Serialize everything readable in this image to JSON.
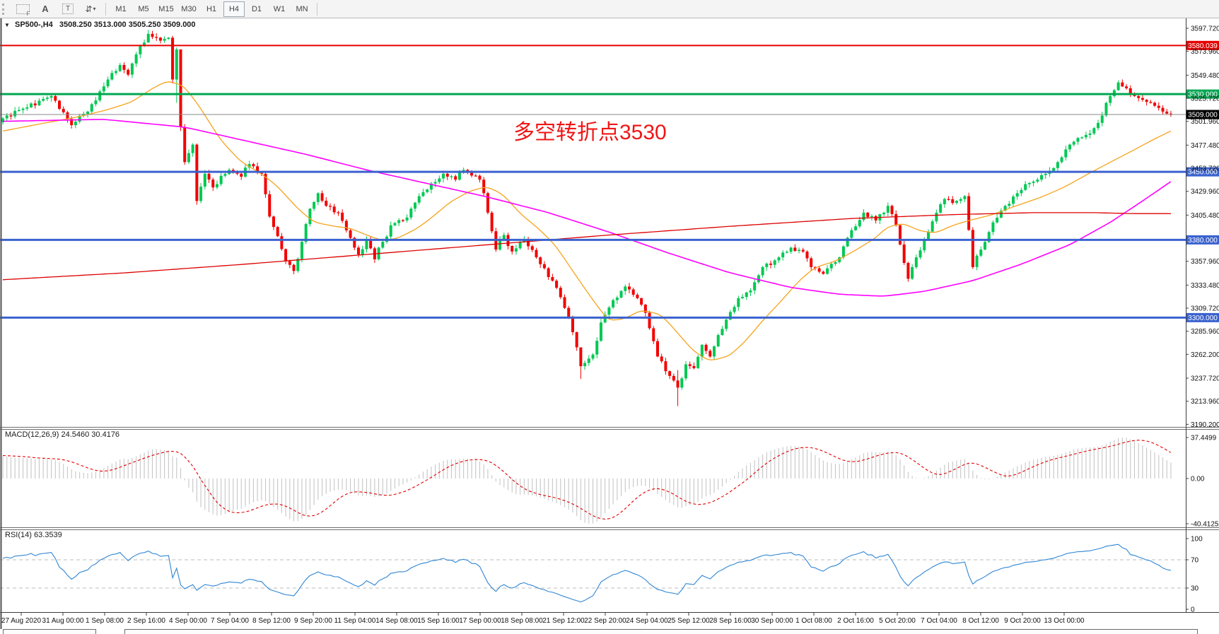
{
  "toolbar": {
    "tools": [
      {
        "name": "grid-f-tool",
        "label": "F"
      },
      {
        "name": "text-label-tool",
        "label": "A"
      },
      {
        "name": "text-tool",
        "label": "T"
      },
      {
        "name": "arrows-tool",
        "label": "⇵"
      }
    ],
    "timeframes": [
      "M1",
      "M5",
      "M15",
      "M30",
      "H1",
      "H4",
      "D1",
      "W1",
      "MN"
    ],
    "active_timeframe": "H4"
  },
  "chart": {
    "symbol": "SP500-,H4",
    "ohlc_line": "3508.250 3513.000 3505.250 3509.000",
    "annotation": "多空转折点3530",
    "annotation_color": "#f01616"
  },
  "indicators": {
    "macd": {
      "caption": "MACD(12,26,9) 24.5460 30.4176",
      "axis_labels": [
        "37.4499",
        "0.00",
        "-40.4125"
      ]
    },
    "rsi": {
      "caption": "RSI(14) 63.3539",
      "axis_labels": [
        "100",
        "70",
        "30",
        "0"
      ],
      "levels": [
        70,
        30
      ]
    }
  },
  "chart_data": {
    "type": "candlestick",
    "symbol": "SP500-",
    "timeframe": "H4",
    "bars": 290,
    "seed": 9,
    "current_price": 3509.0,
    "candle_up_color": "#00c853",
    "candle_down_color": "#f20000",
    "price_axis_ticks": [
      3597.72,
      3573.96,
      3549.48,
      3525.72,
      3501.96,
      3477.48,
      3453.72,
      3429.96,
      3405.48,
      3357.96,
      3333.48,
      3309.72,
      3285.96,
      3262.2,
      3237.72,
      3213.96,
      3190.2
    ],
    "horizontal_lines": [
      {
        "price": 3580.039,
        "label": "3580.039",
        "color": "#e80000",
        "width": 2
      },
      {
        "price": 3530.0,
        "label": "3530.000",
        "color": "#00a651",
        "width": 3
      },
      {
        "price": 3450.0,
        "label": "3450.000",
        "color": "#3a62cf",
        "width": 3
      },
      {
        "price": 3380.0,
        "label": "3380.000",
        "color": "#3a62cf",
        "width": 3
      },
      {
        "price": 3300.0,
        "label": "3300.000",
        "color": "#3a62cf",
        "width": 3
      }
    ],
    "current_price_line": {
      "price": 3509.0,
      "label": "3509.000",
      "line_color": "#8a8a8a",
      "badge_color": "#000000"
    },
    "time_axis_labels": [
      "27 Aug 2020",
      "31 Aug 00:00",
      "1 Sep 08:00",
      "2 Sep 16:00",
      "4 Sep 00:00",
      "7 Sep 04:00",
      "8 Sep 12:00",
      "9 Sep 20:00",
      "11 Sep 04:00",
      "14 Sep 08:00",
      "15 Sep 16:00",
      "17 Sep 00:00",
      "18 Sep 08:00",
      "21 Sep 12:00",
      "22 Sep 20:00",
      "24 Sep 04:00",
      "25 Sep 12:00",
      "28 Sep 16:00",
      "30 Sep 00:00",
      "1 Oct 08:00",
      "2 Oct 16:00",
      "5 Oct 20:00",
      "7 Oct 04:00",
      "8 Oct 12:00",
      "9 Oct 20:00",
      "13 Oct 00:00"
    ],
    "price_path_anchors": [
      [
        0,
        3505
      ],
      [
        5,
        3515
      ],
      [
        12,
        3528
      ],
      [
        17,
        3498
      ],
      [
        21,
        3512
      ],
      [
        26,
        3545
      ],
      [
        29,
        3560
      ],
      [
        31,
        3550
      ],
      [
        34,
        3580
      ],
      [
        36,
        3592
      ],
      [
        39,
        3585
      ],
      [
        41,
        3588
      ],
      [
        42,
        3545
      ],
      [
        43,
        3576
      ],
      [
        44,
        3496
      ],
      [
        45,
        3460
      ],
      [
        47,
        3478
      ],
      [
        48,
        3420
      ],
      [
        50,
        3448
      ],
      [
        52,
        3434
      ],
      [
        56,
        3452
      ],
      [
        59,
        3445
      ],
      [
        61,
        3458
      ],
      [
        64,
        3448
      ],
      [
        66,
        3404
      ],
      [
        70,
        3358
      ],
      [
        72,
        3348
      ],
      [
        74,
        3378
      ],
      [
        76,
        3412
      ],
      [
        78,
        3428
      ],
      [
        80,
        3415
      ],
      [
        83,
        3408
      ],
      [
        86,
        3382
      ],
      [
        88,
        3365
      ],
      [
        90,
        3380
      ],
      [
        92,
        3360
      ],
      [
        94,
        3378
      ],
      [
        96,
        3395
      ],
      [
        100,
        3403
      ],
      [
        103,
        3425
      ],
      [
        106,
        3438
      ],
      [
        109,
        3448
      ],
      [
        112,
        3442
      ],
      [
        114,
        3452
      ],
      [
        118,
        3442
      ],
      [
        120,
        3408
      ],
      [
        122,
        3370
      ],
      [
        124,
        3385
      ],
      [
        126,
        3368
      ],
      [
        129,
        3380
      ],
      [
        133,
        3355
      ],
      [
        136,
        3338
      ],
      [
        139,
        3310
      ],
      [
        141,
        3285
      ],
      [
        143,
        3250
      ],
      [
        146,
        3262
      ],
      [
        148,
        3295
      ],
      [
        151,
        3318
      ],
      [
        154,
        3332
      ],
      [
        157,
        3320
      ],
      [
        159,
        3305
      ],
      [
        162,
        3260
      ],
      [
        165,
        3240
      ],
      [
        167,
        3228
      ],
      [
        169,
        3252
      ],
      [
        171,
        3248
      ],
      [
        173,
        3272
      ],
      [
        175,
        3260
      ],
      [
        179,
        3298
      ],
      [
        182,
        3320
      ],
      [
        185,
        3328
      ],
      [
        188,
        3352
      ],
      [
        192,
        3362
      ],
      [
        195,
        3372
      ],
      [
        198,
        3368
      ],
      [
        200,
        3352
      ],
      [
        203,
        3345
      ],
      [
        207,
        3362
      ],
      [
        210,
        3390
      ],
      [
        213,
        3408
      ],
      [
        216,
        3400
      ],
      [
        219,
        3415
      ],
      [
        221,
        3395
      ],
      [
        224,
        3340
      ],
      [
        226,
        3362
      ],
      [
        228,
        3380
      ],
      [
        231,
        3408
      ],
      [
        233,
        3422
      ],
      [
        235,
        3418
      ],
      [
        238,
        3425
      ],
      [
        240,
        3352
      ],
      [
        242,
        3370
      ],
      [
        245,
        3398
      ],
      [
        248,
        3415
      ],
      [
        251,
        3428
      ],
      [
        255,
        3440
      ],
      [
        258,
        3448
      ],
      [
        261,
        3460
      ],
      [
        264,
        3478
      ],
      [
        268,
        3488
      ],
      [
        270,
        3495
      ],
      [
        272,
        3508
      ],
      [
        274,
        3528
      ],
      [
        276,
        3542
      ],
      [
        278,
        3536
      ],
      [
        280,
        3528
      ],
      [
        283,
        3522
      ],
      [
        285,
        3518
      ],
      [
        287,
        3512
      ],
      [
        289,
        3509
      ]
    ],
    "wick_overrides": {
      "36": [
        3596,
        3583
      ],
      "42": [
        3590,
        3541
      ],
      "43": [
        3578,
        3521
      ],
      "44": [
        3576,
        3492
      ],
      "143": [
        3260,
        3237
      ],
      "167": [
        3246,
        3209
      ]
    },
    "moving_averages": [
      {
        "name": "fast",
        "color": "#f5a31c",
        "width": 1.3,
        "anchors": [
          [
            0,
            3492
          ],
          [
            10,
            3500
          ],
          [
            18,
            3506
          ],
          [
            26,
            3514
          ],
          [
            32,
            3522
          ],
          [
            37,
            3536
          ],
          [
            41,
            3544
          ],
          [
            45,
            3538
          ],
          [
            49,
            3515
          ],
          [
            54,
            3482
          ],
          [
            59,
            3460
          ],
          [
            64,
            3448
          ],
          [
            68,
            3435
          ],
          [
            73,
            3412
          ],
          [
            77,
            3398
          ],
          [
            82,
            3394
          ],
          [
            86,
            3392
          ],
          [
            90,
            3385
          ],
          [
            94,
            3379
          ],
          [
            98,
            3382
          ],
          [
            103,
            3393
          ],
          [
            107,
            3406
          ],
          [
            111,
            3420
          ],
          [
            116,
            3431
          ],
          [
            120,
            3435
          ],
          [
            124,
            3426
          ],
          [
            128,
            3407
          ],
          [
            133,
            3390
          ],
          [
            137,
            3373
          ],
          [
            141,
            3348
          ],
          [
            146,
            3318
          ],
          [
            150,
            3296
          ],
          [
            154,
            3299
          ],
          [
            158,
            3308
          ],
          [
            163,
            3303
          ],
          [
            167,
            3284
          ],
          [
            171,
            3265
          ],
          [
            175,
            3255
          ],
          [
            180,
            3261
          ],
          [
            184,
            3277
          ],
          [
            188,
            3297
          ],
          [
            193,
            3319
          ],
          [
            197,
            3338
          ],
          [
            201,
            3352
          ],
          [
            206,
            3358
          ],
          [
            210,
            3367
          ],
          [
            216,
            3382
          ],
          [
            219,
            3394
          ],
          [
            223,
            3397
          ],
          [
            227,
            3389
          ],
          [
            231,
            3387
          ],
          [
            235,
            3395
          ],
          [
            240,
            3401
          ],
          [
            245,
            3406
          ],
          [
            250,
            3414
          ],
          [
            257,
            3424
          ],
          [
            263,
            3435
          ],
          [
            269,
            3449
          ],
          [
            275,
            3462
          ],
          [
            281,
            3475
          ],
          [
            285,
            3484
          ],
          [
            289,
            3492
          ]
        ]
      },
      {
        "name": "mid",
        "color": "#ff00ff",
        "width": 1.6,
        "anchors": [
          [
            0,
            3502
          ],
          [
            25,
            3504
          ],
          [
            45,
            3496
          ],
          [
            60,
            3482
          ],
          [
            75,
            3468
          ],
          [
            90,
            3452
          ],
          [
            105,
            3438
          ],
          [
            120,
            3424
          ],
          [
            135,
            3408
          ],
          [
            150,
            3388
          ],
          [
            165,
            3366
          ],
          [
            180,
            3346
          ],
          [
            195,
            3331
          ],
          [
            207,
            3324
          ],
          [
            218,
            3322
          ],
          [
            228,
            3327
          ],
          [
            240,
            3338
          ],
          [
            252,
            3355
          ],
          [
            264,
            3375
          ],
          [
            274,
            3398
          ],
          [
            282,
            3420
          ],
          [
            289,
            3440
          ]
        ]
      },
      {
        "name": "slow",
        "color": "#dd0000",
        "width": 1.3,
        "anchors": [
          [
            0,
            3339
          ],
          [
            30,
            3346
          ],
          [
            60,
            3355
          ],
          [
            90,
            3365
          ],
          [
            120,
            3375
          ],
          [
            150,
            3385
          ],
          [
            180,
            3394
          ],
          [
            210,
            3402
          ],
          [
            235,
            3406
          ],
          [
            255,
            3408
          ],
          [
            270,
            3408
          ],
          [
            280,
            3407
          ],
          [
            289,
            3407
          ]
        ]
      }
    ],
    "macd_params": [
      12,
      26,
      9
    ],
    "rsi_period": 14
  }
}
